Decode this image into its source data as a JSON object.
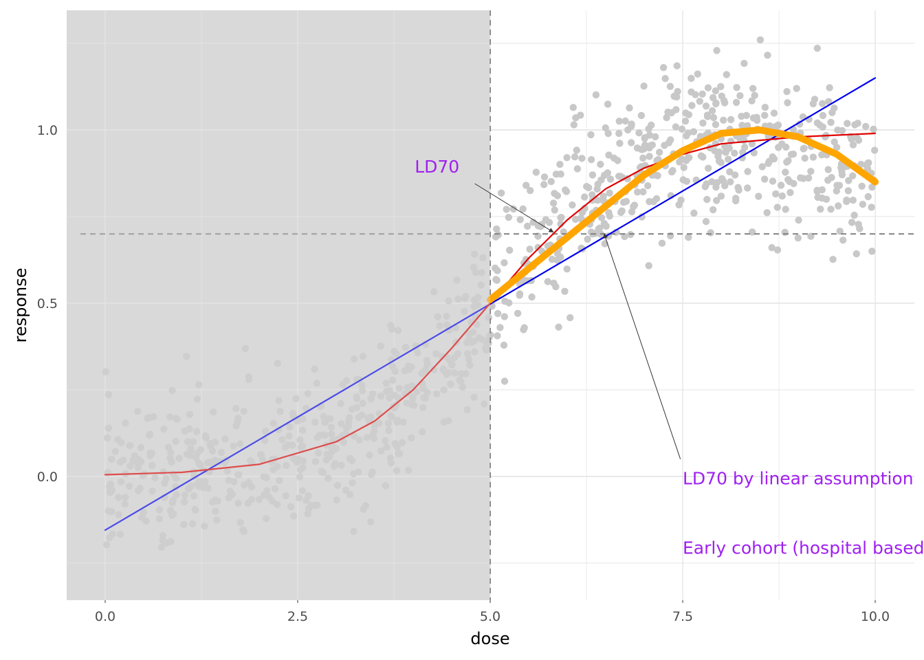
{
  "chart_data": {
    "type": "scatter",
    "title": "",
    "xlabel": "dose",
    "ylabel": "response",
    "xlim": [
      -0.5,
      10.5
    ],
    "ylim": [
      -0.35,
      1.35
    ],
    "x_ticks": [
      0.0,
      2.5,
      5.0,
      7.5,
      10.0
    ],
    "x_tick_labels": [
      "0.0",
      "2.5",
      "5.0",
      "7.5",
      "10.0"
    ],
    "y_ticks": [
      0.0,
      0.5,
      1.0
    ],
    "y_tick_labels": [
      "0.0",
      "0.5",
      "1.0"
    ],
    "grid": true,
    "shaded_region": {
      "x_from": -0.5,
      "x_to": 5.0,
      "color": "#d9d9d9"
    },
    "reference_lines": [
      {
        "orientation": "vertical",
        "x": 5.0,
        "style": "dashed",
        "color": "#808080"
      },
      {
        "orientation": "horizontal",
        "y": 0.7,
        "style": "dashed",
        "color": "#808080"
      }
    ],
    "point_color": "#c8c8c8",
    "points_summary": "about 1000 grey points scattered around a sigmoid trend, dose 0–10",
    "series": [
      {
        "kind": "linear fit",
        "color": "#0000ee",
        "x": [
          0,
          10
        ],
        "y": [
          -0.155,
          1.15
        ]
      },
      {
        "kind": "sigmoid fit",
        "color": "#e00000",
        "x": [
          0,
          1,
          2,
          3,
          3.5,
          4,
          4.5,
          5,
          5.5,
          6,
          6.5,
          7,
          7.5,
          8,
          9,
          10
        ],
        "y": [
          0.005,
          0.012,
          0.035,
          0.1,
          0.16,
          0.25,
          0.37,
          0.5,
          0.63,
          0.74,
          0.83,
          0.89,
          0.93,
          0.96,
          0.98,
          0.99
        ]
      },
      {
        "kind": "quadratic fit (dose ≥ 5)",
        "color": "#ffa500",
        "x": [
          5.0,
          5.5,
          6.0,
          6.5,
          7.0,
          7.5,
          8.0,
          8.5,
          9.0,
          9.5,
          10.0
        ],
        "y": [
          0.51,
          0.6,
          0.69,
          0.78,
          0.87,
          0.94,
          0.99,
          1.0,
          0.98,
          0.93,
          0.85
        ]
      }
    ],
    "annotations": [
      {
        "text": "LD70",
        "color": "#a020f0",
        "text_x": 4.6,
        "text_y": 0.895,
        "arrow_from": [
          4.8,
          0.845
        ],
        "arrow_to": [
          5.82,
          0.705
        ]
      },
      {
        "text": "LD70 by linear assumption",
        "color": "#a020f0",
        "text_x": 7.5,
        "text_y": -0.005,
        "arrow_from": [
          7.47,
          0.05
        ],
        "arrow_to": [
          6.48,
          0.7
        ]
      },
      {
        "text": "Early cohort (hospital based)",
        "color": "#a020f0",
        "text_x": 7.5,
        "text_y": -0.205
      }
    ]
  }
}
